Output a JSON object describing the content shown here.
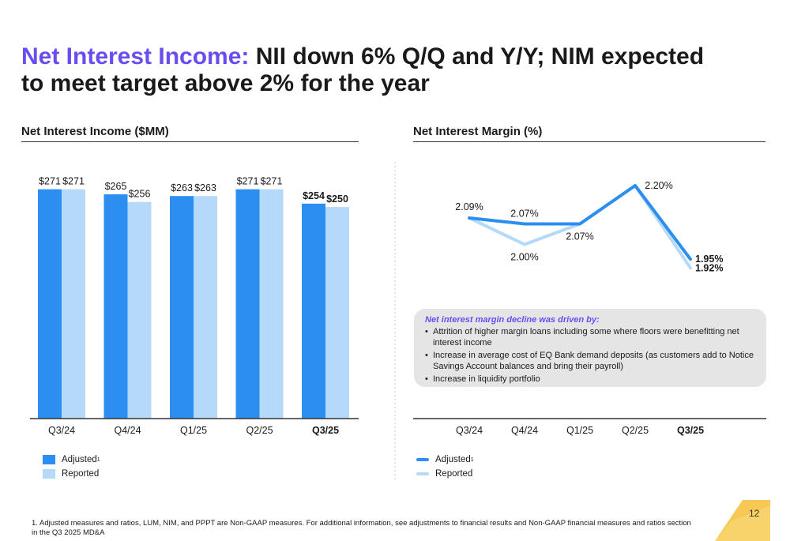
{
  "title": {
    "accent": "Net Interest Income:",
    "rest": " NII down 6% Q/Q and Y/Y; NIM expected to meet target above 2% for the year"
  },
  "colors": {
    "adjusted": "#2b8ef0",
    "reported": "#b5d9f8",
    "accent": "#6a4cf0",
    "gold": "#f6c240"
  },
  "chart_data": [
    {
      "type": "bar",
      "title": "Net Interest Income ($MM)",
      "categories": [
        "Q3/24",
        "Q4/24",
        "Q1/25",
        "Q2/25",
        "Q3/25"
      ],
      "emphasized_category": "Q3/25",
      "ylim": [
        0,
        300
      ],
      "grid": false,
      "legend_position": "bottom-left",
      "series": [
        {
          "name": "Adjusted",
          "name_superscript": "1",
          "values": [
            271,
            265,
            263,
            271,
            254
          ],
          "labels": [
            "$271",
            "$265",
            "$263",
            "$271",
            "$254"
          ]
        },
        {
          "name": "Reported",
          "values": [
            271,
            256,
            263,
            271,
            250
          ],
          "labels": [
            "$271",
            "$256",
            "$263",
            "$271",
            "$250"
          ]
        }
      ]
    },
    {
      "type": "line",
      "title": "Net Interest Margin (%)",
      "categories": [
        "Q3/24",
        "Q4/24",
        "Q1/25",
        "Q2/25",
        "Q3/25"
      ],
      "emphasized_category": "Q3/25",
      "ylim": [
        1.85,
        2.25
      ],
      "grid": false,
      "legend_position": "bottom-left",
      "series": [
        {
          "name": "Adjusted",
          "name_superscript": "1",
          "values": [
            2.09,
            2.07,
            2.07,
            2.2,
            1.95
          ],
          "labels": [
            "2.09%",
            "2.07%",
            "",
            "2.20%",
            "1.95%"
          ]
        },
        {
          "name": "Reported",
          "values": [
            2.09,
            2.0,
            2.07,
            2.2,
            1.92
          ],
          "labels": [
            "",
            "2.00%",
            "2.07%",
            "",
            "1.92%"
          ]
        }
      ]
    }
  ],
  "callout": {
    "heading": "Net interest margin decline was driven by:",
    "bullets": [
      "Attrition of higher margin loans including some where floors were benefitting net interest income",
      "Increase in average cost of EQ Bank demand deposits (as customers add to Notice Savings Account balances and bring their payroll)",
      "Increase in liquidity portfolio"
    ]
  },
  "footnote": "1. Adjusted measures and ratios, LUM, NIM, and PPPT are Non-GAAP measures. For additional information, see adjustments to financial results and Non-GAAP financial measures and ratios section in the Q3 2025 MD&A",
  "page_number": "12"
}
